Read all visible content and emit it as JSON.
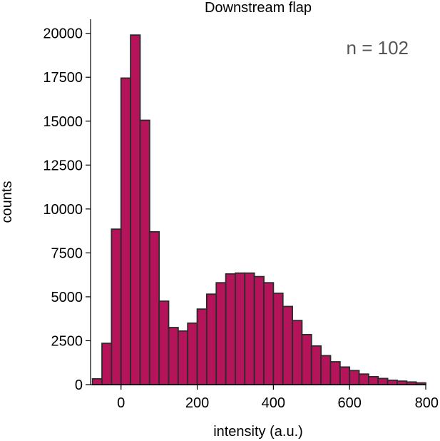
{
  "chart_data": {
    "type": "bar",
    "title": "Downstream flap",
    "xlabel": "intensity (a.u.)",
    "ylabel": "counts",
    "annotation": "n = 102",
    "xlim": [
      -80,
      800
    ],
    "ylim": [
      0,
      20800
    ],
    "xticks": [
      0,
      200,
      400,
      600,
      800
    ],
    "yticks": [
      0,
      2500,
      5000,
      7500,
      10000,
      12500,
      15000,
      17500,
      20000
    ],
    "bin_width": 25,
    "bar_color": "#b5145a",
    "edge_color": "#2b2b2b",
    "grid": false,
    "bins": [
      {
        "x0": -75,
        "x1": -50,
        "count": 330
      },
      {
        "x0": -50,
        "x1": -25,
        "count": 2350
      },
      {
        "x0": -25,
        "x1": 0,
        "count": 8850
      },
      {
        "x0": 0,
        "x1": 25,
        "count": 17450
      },
      {
        "x0": 25,
        "x1": 50,
        "count": 19900
      },
      {
        "x0": 50,
        "x1": 75,
        "count": 15050
      },
      {
        "x0": 75,
        "x1": 100,
        "count": 8700
      },
      {
        "x0": 100,
        "x1": 125,
        "count": 4750
      },
      {
        "x0": 125,
        "x1": 150,
        "count": 3250
      },
      {
        "x0": 150,
        "x1": 175,
        "count": 3050
      },
      {
        "x0": 175,
        "x1": 200,
        "count": 3500
      },
      {
        "x0": 200,
        "x1": 225,
        "count": 4300
      },
      {
        "x0": 225,
        "x1": 250,
        "count": 5150
      },
      {
        "x0": 250,
        "x1": 275,
        "count": 5800
      },
      {
        "x0": 275,
        "x1": 300,
        "count": 6300
      },
      {
        "x0": 300,
        "x1": 325,
        "count": 6350
      },
      {
        "x0": 325,
        "x1": 350,
        "count": 6350
      },
      {
        "x0": 350,
        "x1": 375,
        "count": 6150
      },
      {
        "x0": 375,
        "x1": 400,
        "count": 5800
      },
      {
        "x0": 400,
        "x1": 425,
        "count": 5200
      },
      {
        "x0": 425,
        "x1": 450,
        "count": 4450
      },
      {
        "x0": 450,
        "x1": 475,
        "count": 3650
      },
      {
        "x0": 475,
        "x1": 500,
        "count": 2850
      },
      {
        "x0": 500,
        "x1": 525,
        "count": 2200
      },
      {
        "x0": 525,
        "x1": 550,
        "count": 1650
      },
      {
        "x0": 550,
        "x1": 575,
        "count": 1300
      },
      {
        "x0": 575,
        "x1": 600,
        "count": 1000
      },
      {
        "x0": 600,
        "x1": 625,
        "count": 800
      },
      {
        "x0": 625,
        "x1": 650,
        "count": 600
      },
      {
        "x0": 650,
        "x1": 675,
        "count": 450
      },
      {
        "x0": 675,
        "x1": 700,
        "count": 350
      },
      {
        "x0": 700,
        "x1": 725,
        "count": 250
      },
      {
        "x0": 725,
        "x1": 750,
        "count": 200
      },
      {
        "x0": 750,
        "x1": 775,
        "count": 150
      },
      {
        "x0": 775,
        "x1": 800,
        "count": 100
      }
    ]
  }
}
